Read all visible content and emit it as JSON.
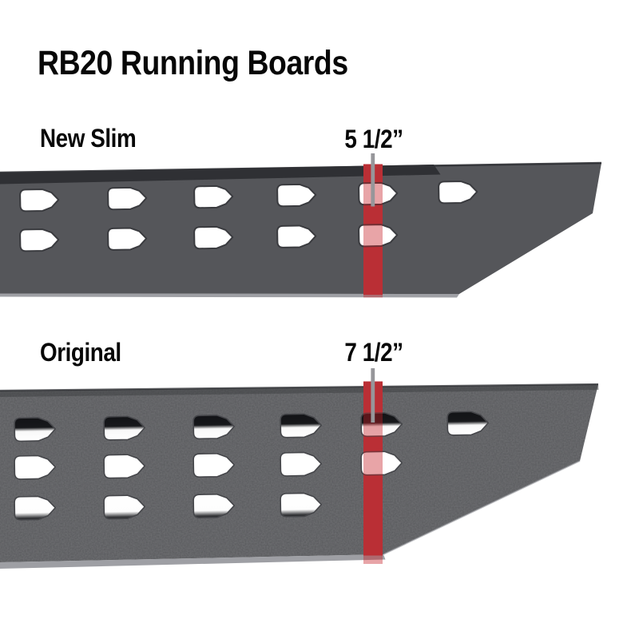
{
  "title": "RB20 Running Boards",
  "boards": [
    {
      "name": "New Slim",
      "width": "5 1/2”",
      "holes_per_row": [
        6,
        5
      ]
    },
    {
      "name": "Original",
      "width": "7 1/2”",
      "holes_per_row": [
        6,
        5,
        4
      ]
    }
  ],
  "colors": {
    "background": "#ffffff",
    "text": "#070707",
    "board_flat": "#55565a",
    "board_textured": "#58595c",
    "rail_dark": "#2f3034",
    "bevel_light": "#94959a",
    "accent_red": "#b23c41",
    "accent_red_overlay": "#c61c22",
    "measure_line": "#96969a"
  }
}
